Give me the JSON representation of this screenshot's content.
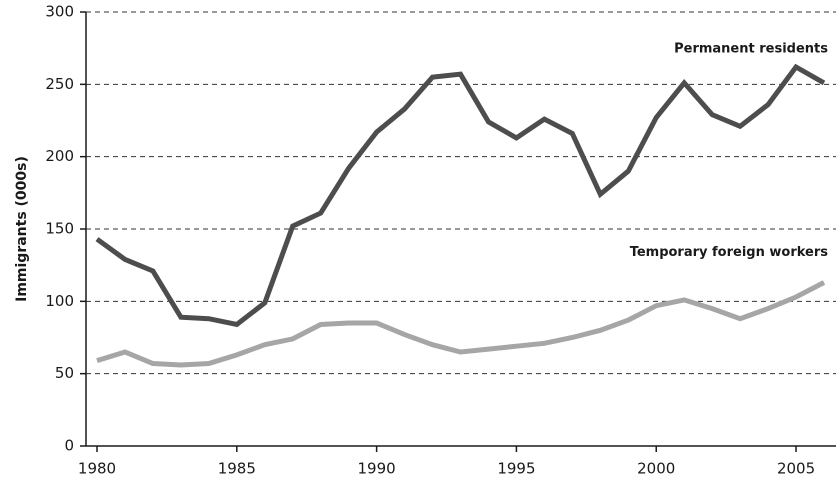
{
  "chart_data": {
    "type": "line",
    "y_label": "Immigrants (000s)",
    "x": [
      1980,
      1981,
      1982,
      1983,
      1984,
      1985,
      1986,
      1987,
      1988,
      1989,
      1990,
      1991,
      1992,
      1993,
      1994,
      1995,
      1996,
      1997,
      1998,
      1999,
      2000,
      2001,
      2002,
      2003,
      2004,
      2005,
      2006
    ],
    "series": [
      {
        "name": "Permanent residents",
        "color": "#4d4d4d",
        "values": [
          143,
          129,
          121,
          89,
          88,
          84,
          99,
          152,
          161,
          192,
          217,
          233,
          255,
          257,
          224,
          213,
          226,
          216,
          174,
          190,
          227,
          251,
          229,
          221,
          236,
          262,
          251
        ]
      },
      {
        "name": "Temporary foreign workers",
        "color": "#a6a6a6",
        "values": [
          59,
          65,
          57,
          56,
          57,
          63,
          70,
          74,
          84,
          85,
          85,
          77,
          70,
          65,
          67,
          69,
          71,
          75,
          80,
          87,
          97,
          101,
          95,
          88,
          95,
          103,
          113
        ]
      }
    ],
    "xlim": [
      1980,
      2006
    ],
    "xticks": [
      1980,
      1985,
      1990,
      1995,
      2000,
      2005
    ],
    "ylim": [
      0,
      300
    ],
    "yticks": [
      0,
      50,
      100,
      150,
      200,
      250,
      300
    ],
    "grid": true
  }
}
